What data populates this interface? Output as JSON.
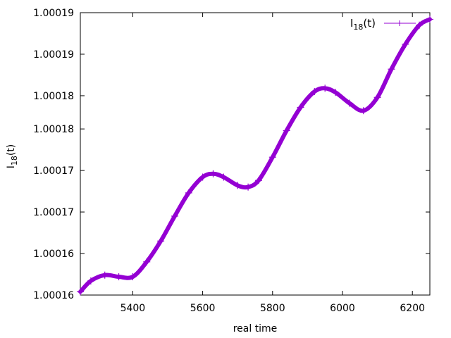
{
  "chart_data": {
    "type": "line",
    "title": "",
    "xlabel": "real time",
    "ylabel": {
      "base": "I",
      "sub": "18",
      "suffix": "(t)"
    },
    "xlim": [
      5250,
      6250
    ],
    "ylim": [
      1.000158,
      1.000192
    ],
    "x_ticks": [
      5400,
      5600,
      5800,
      6000,
      6200
    ],
    "x_tick_labels": [
      "5400",
      "5600",
      "5800",
      "6000",
      "6200"
    ],
    "y_ticks": [
      1.000158,
      1.000163,
      1.000168,
      1.000173,
      1.000178,
      1.000182,
      1.000187,
      1.000192
    ],
    "y_tick_labels": [
      "1.00016",
      "1.00016",
      "1.00017",
      "1.00017",
      "1.00018",
      "1.00018",
      "1.00019",
      "1.00019"
    ],
    "grid": false,
    "legend": {
      "placement": "top-right"
    },
    "series": [
      {
        "name": {
          "base": "I",
          "sub": "18",
          "suffix": "(t)"
        },
        "color": "#9400d3",
        "marker": "plus",
        "x": [
          5250,
          5280,
          5320,
          5360,
          5400,
          5440,
          5480,
          5520,
          5560,
          5600,
          5630,
          5660,
          5700,
          5730,
          5760,
          5800,
          5840,
          5880,
          5920,
          5950,
          5980,
          6020,
          6060,
          6100,
          6140,
          6180,
          6220,
          6250
        ],
        "y": [
          1.0001584,
          1.0001597,
          1.0001604,
          1.0001602,
          1.0001602,
          1.000162,
          1.0001645,
          1.0001675,
          1.0001703,
          1.0001722,
          1.0001726,
          1.0001722,
          1.0001712,
          1.000171,
          1.0001718,
          1.0001746,
          1.0001778,
          1.0001806,
          1.0001825,
          1.0001829,
          1.0001824,
          1.0001811,
          1.0001802,
          1.0001818,
          1.0001852,
          1.0001882,
          1.0001905,
          1.0001912
        ]
      }
    ]
  }
}
